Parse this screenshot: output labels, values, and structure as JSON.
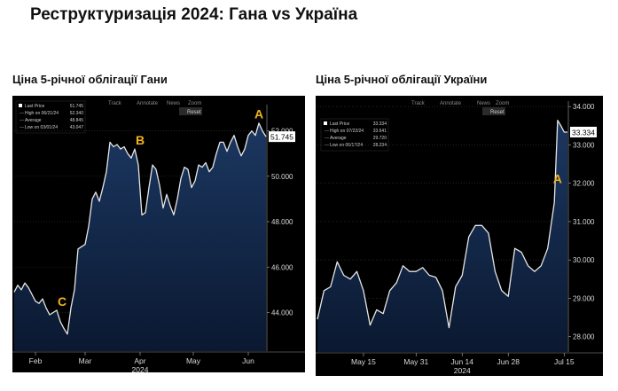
{
  "title": "Реструктуризація 2024: Гана vs Україна",
  "chart_data": [
    {
      "type": "area",
      "title": "Ціна 5-річної облігації  Гани",
      "toolbar": {
        "track": "Track",
        "annotate": "Annotate",
        "news": "News",
        "zoom": "Zoom",
        "reset": "Reset"
      },
      "legend": [
        {
          "label": "Last Price",
          "value": "51.745"
        },
        {
          "label": "High on 06/21/24",
          "value": "52.340"
        },
        {
          "label": "Average",
          "value": "48.845"
        },
        {
          "label": "Low on 03/01/24",
          "value": "43.047"
        }
      ],
      "last_price_label": "51.745",
      "last_price": 51.745,
      "ylim": [
        42.3,
        53.0
      ],
      "yticks": [
        44,
        46,
        48,
        50,
        52
      ],
      "ytick_labels": [
        "44.000",
        "46.000",
        "48.000",
        "50.000",
        "52.000"
      ],
      "xlim": [
        0,
        142
      ],
      "xticks": [
        {
          "x": 12,
          "label": "Feb"
        },
        {
          "x": 40,
          "label": "Mar"
        },
        {
          "x": 71,
          "label": "Apr"
        },
        {
          "x": 101,
          "label": "May"
        },
        {
          "x": 132,
          "label": "Jun"
        }
      ],
      "year_label": "2024",
      "year_x": 71,
      "annotations": [
        {
          "text": "A",
          "x": 138,
          "y": 52.55
        },
        {
          "text": "B",
          "x": 71,
          "y": 51.4
        },
        {
          "text": "C",
          "x": 27,
          "y": 44.3
        }
      ],
      "x": [
        0,
        2,
        4,
        6,
        8,
        10,
        12,
        14,
        16,
        18,
        20,
        22,
        24,
        26,
        28,
        30,
        32,
        34,
        36,
        38,
        40,
        42,
        44,
        46,
        48,
        50,
        52,
        54,
        56,
        58,
        60,
        62,
        64,
        66,
        68,
        70,
        72,
        74,
        76,
        78,
        80,
        82,
        84,
        86,
        88,
        90,
        92,
        94,
        96,
        98,
        100,
        102,
        104,
        106,
        108,
        110,
        112,
        114,
        116,
        118,
        120,
        122,
        124,
        126,
        128,
        130,
        132,
        134,
        136,
        138,
        140,
        142
      ],
      "y": [
        44.9,
        45.2,
        45.0,
        45.3,
        45.1,
        44.8,
        44.5,
        44.4,
        44.6,
        44.2,
        43.9,
        44.0,
        44.1,
        43.6,
        43.3,
        43.05,
        44.2,
        45.0,
        46.8,
        46.9,
        47.0,
        47.8,
        49.0,
        49.3,
        48.9,
        49.5,
        50.2,
        51.5,
        51.3,
        51.4,
        51.2,
        51.3,
        51.0,
        50.8,
        51.2,
        50.5,
        48.3,
        48.4,
        49.5,
        50.5,
        50.3,
        49.6,
        48.6,
        49.2,
        48.7,
        48.3,
        49.0,
        49.9,
        50.4,
        50.3,
        49.5,
        49.8,
        50.5,
        50.4,
        50.6,
        50.2,
        50.4,
        51.0,
        51.5,
        51.5,
        51.1,
        51.5,
        51.8,
        51.3,
        50.9,
        51.2,
        51.8,
        52.0,
        51.8,
        52.34,
        52.0,
        51.745
      ]
    },
    {
      "type": "area",
      "title": "Ціна 5-річної облігації  України",
      "toolbar": {
        "track": "Track",
        "annotate": "Annotate",
        "news": "News",
        "zoom": "Zoom",
        "reset": "Reset"
      },
      "legend": [
        {
          "label": "Last Price",
          "value": "33.334"
        },
        {
          "label": "High on 07/22/24",
          "value": "33.641"
        },
        {
          "label": "Average",
          "value": "29.720"
        },
        {
          "label": "Low on 06/17/24",
          "value": "28.234"
        }
      ],
      "last_price_label": "33.334",
      "last_price": 33.334,
      "ylim": [
        27.6,
        34.05
      ],
      "yticks": [
        28,
        29,
        30,
        31,
        32,
        33,
        34
      ],
      "ytick_labels": [
        "28.000",
        "29.000",
        "30.000",
        "31.000",
        "32.000",
        "33.000",
        "34.000"
      ],
      "xlim": [
        0,
        76
      ],
      "xticks": [
        {
          "x": 14,
          "label": "May 15"
        },
        {
          "x": 30,
          "label": "May 31"
        },
        {
          "x": 44,
          "label": "Jun 14"
        },
        {
          "x": 58,
          "label": "Jun 28"
        },
        {
          "x": 75,
          "label": "Jul 15"
        }
      ],
      "year_label": "2024",
      "year_x": 44,
      "annotations": [
        {
          "text": "A",
          "x": 73,
          "y": 32.0
        }
      ],
      "x": [
        0,
        2,
        4,
        6,
        8,
        10,
        12,
        14,
        16,
        18,
        20,
        22,
        24,
        26,
        28,
        30,
        32,
        34,
        36,
        38,
        40,
        42,
        44,
        46,
        48,
        50,
        52,
        54,
        56,
        58,
        60,
        62,
        64,
        66,
        68,
        70,
        72,
        73,
        74,
        75,
        76
      ],
      "y": [
        28.45,
        29.2,
        29.3,
        29.95,
        29.6,
        29.5,
        29.7,
        29.2,
        28.3,
        28.7,
        28.6,
        29.2,
        29.4,
        29.85,
        29.7,
        29.7,
        29.8,
        29.6,
        29.55,
        29.2,
        28.234,
        29.3,
        29.6,
        30.6,
        30.9,
        30.9,
        30.7,
        29.7,
        29.2,
        29.05,
        30.3,
        30.2,
        29.85,
        29.7,
        29.85,
        30.3,
        31.5,
        33.641,
        33.5,
        33.334,
        33.334
      ]
    }
  ]
}
